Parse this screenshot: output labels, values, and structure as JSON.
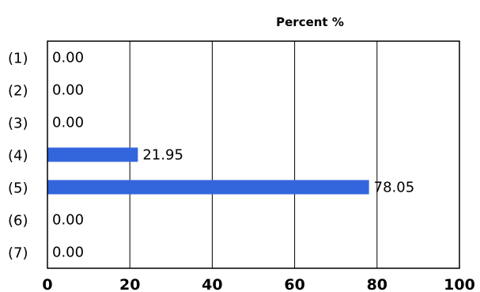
{
  "chart_data": {
    "type": "bar",
    "orientation": "horizontal",
    "title": "Percent %",
    "xlabel": "",
    "ylabel": "",
    "categories": [
      "(1)",
      "(2)",
      "(3)",
      "(4)",
      "(5)",
      "(6)",
      "(7)"
    ],
    "values": [
      0.0,
      0.0,
      0.0,
      21.95,
      78.05,
      0.0,
      0.0
    ],
    "value_labels": [
      "0.00",
      "0.00",
      "0.00",
      "21.95",
      "78.05",
      "0.00",
      "0.00"
    ],
    "xlim": [
      0,
      100
    ],
    "x_ticks": [
      0,
      20,
      40,
      60,
      80,
      100
    ],
    "x_tick_labels": [
      "0",
      "20",
      "40",
      "60",
      "80",
      "100"
    ],
    "grid": true,
    "legend": "none",
    "bar_color": "#3366dd"
  }
}
